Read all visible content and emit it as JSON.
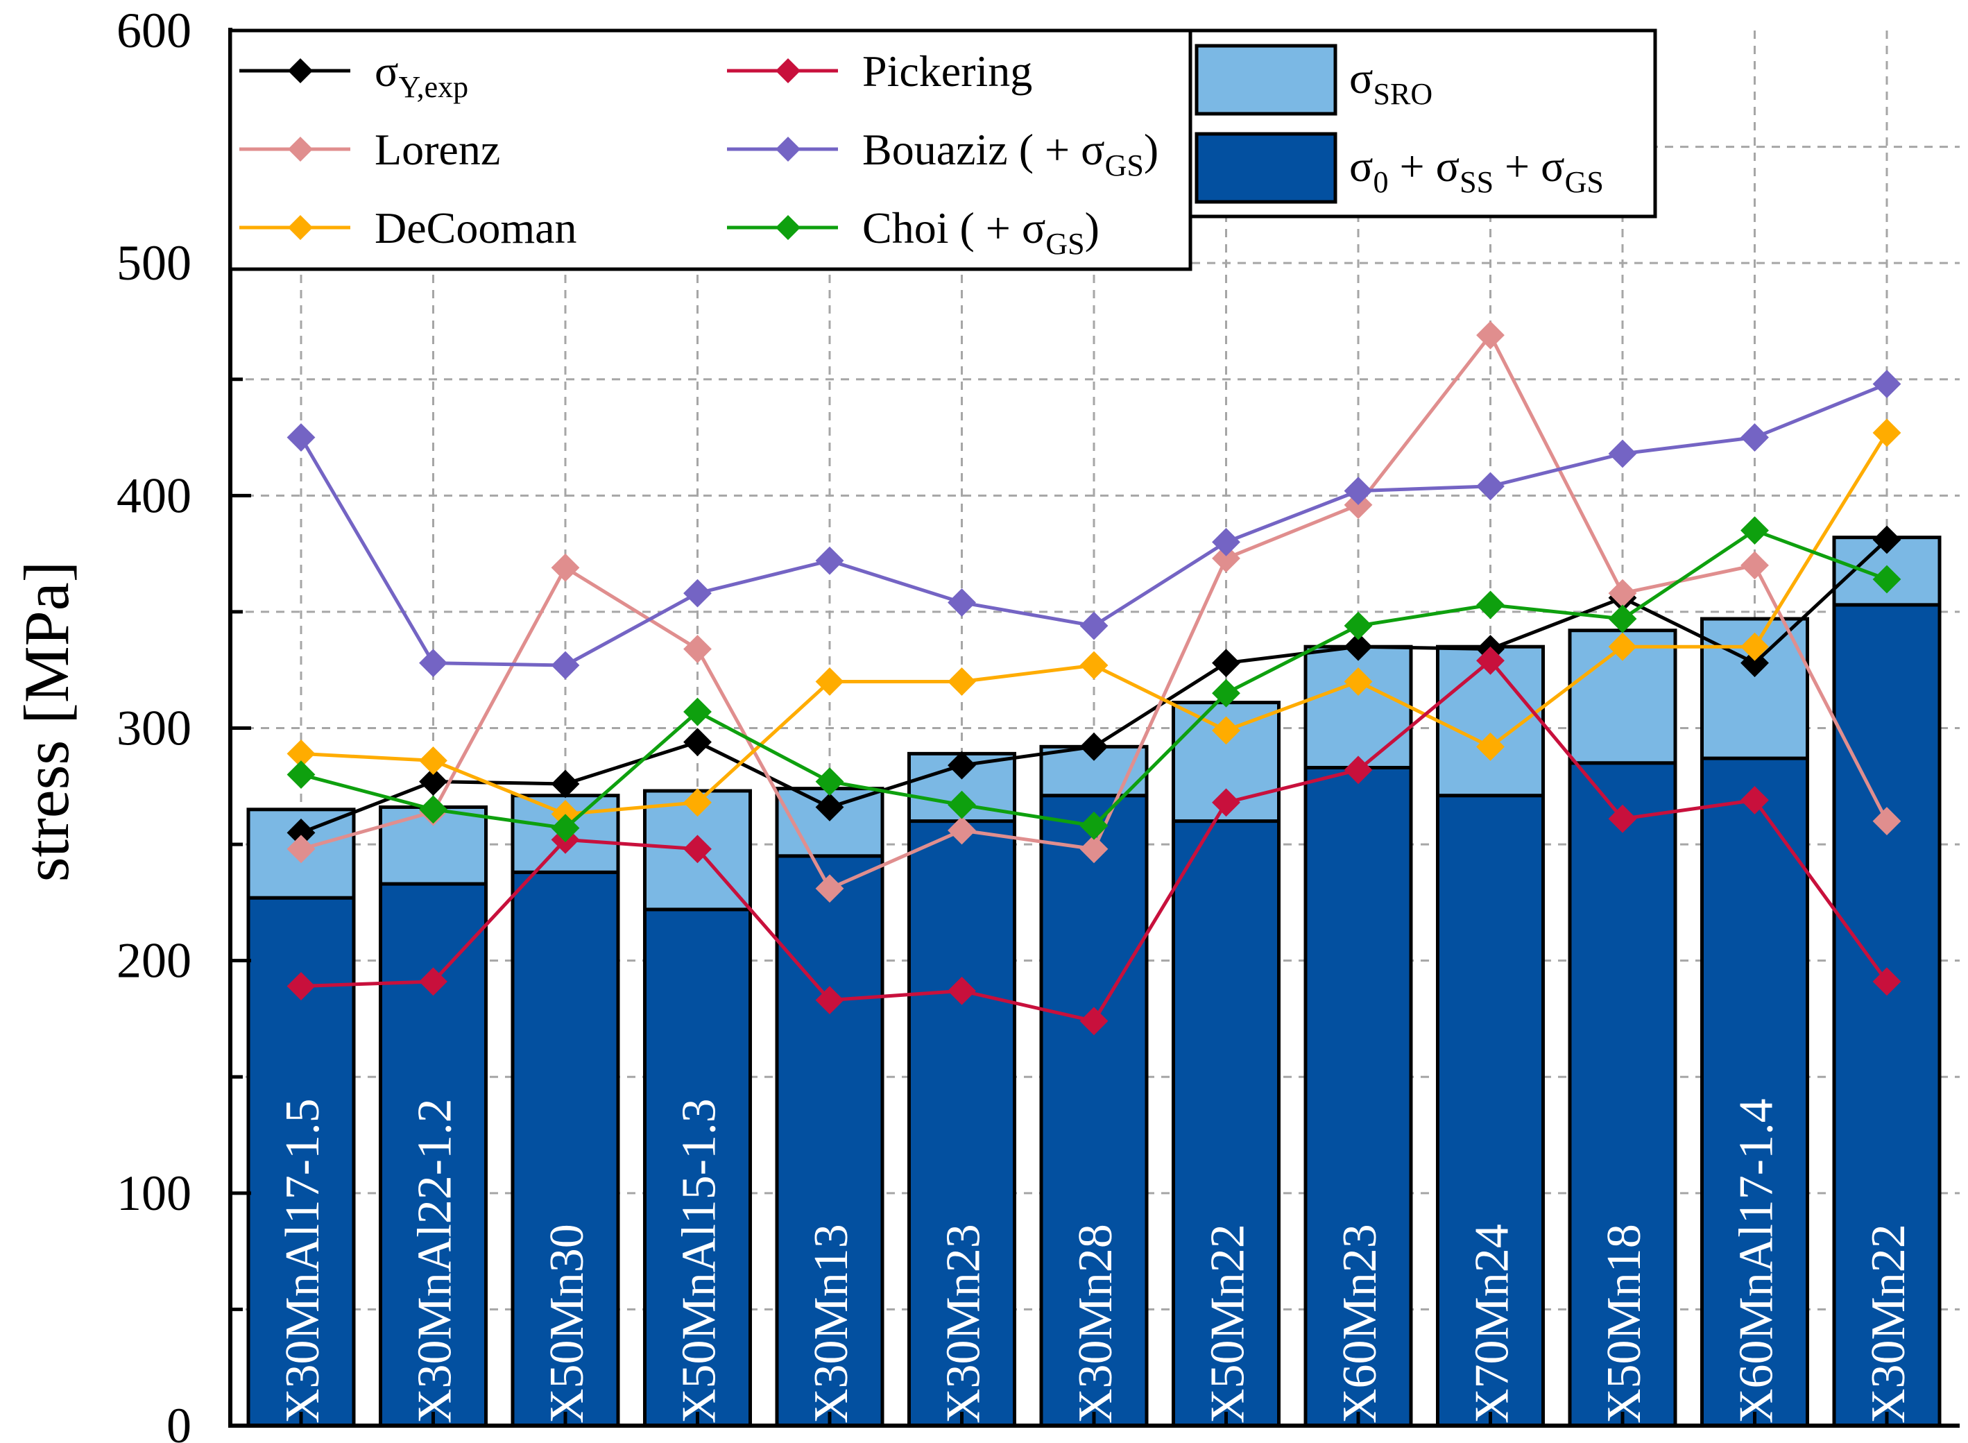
{
  "chart_data": {
    "type": "bar",
    "ylabel": "stress [MPa]",
    "xlabel": "",
    "ylim": [
      0,
      600
    ],
    "yticks": [
      "0",
      "100",
      "200",
      "300",
      "400",
      "500",
      "600"
    ],
    "grid": true,
    "stacked": true,
    "categories": [
      "X30MnAl17-1.5",
      "X30MnAl22-1.2",
      "X50Mn30",
      "X50MnAl15-1.3",
      "X30Mn13",
      "X30Mn23",
      "X30Mn28",
      "X50Mn22",
      "X60Mn23",
      "X70Mn24",
      "X50Mn18",
      "X60MnAl17-1.4",
      "X30Mn22"
    ],
    "bar_series": [
      {
        "key": "base",
        "name": "σ0 + σSS + σGS",
        "color": "#0350a0",
        "values": [
          227,
          233,
          238,
          222,
          245,
          260,
          271,
          260,
          283,
          271,
          285,
          287,
          353
        ]
      },
      {
        "key": "sro",
        "name": "σSRO",
        "color": "#7bb8e4",
        "values": [
          38,
          33,
          33,
          51,
          29,
          29,
          21,
          51,
          52,
          64,
          57,
          60,
          29
        ]
      }
    ],
    "line_series": [
      {
        "key": "exp",
        "name": "σY,exp",
        "color": "#000000",
        "values": [
          255,
          277,
          276,
          294,
          266,
          284,
          292,
          328,
          335,
          334,
          356,
          328,
          381
        ]
      },
      {
        "key": "lorenz",
        "name": "Lorenz",
        "color": "#e08e8e",
        "values": [
          248,
          264,
          369,
          334,
          231,
          256,
          248,
          373,
          396,
          469,
          358,
          370,
          260
        ]
      },
      {
        "key": "decooman",
        "name": "DeCooman",
        "color": "#ffac00",
        "values": [
          289,
          286,
          263,
          268,
          320,
          320,
          327,
          299,
          320,
          292,
          335,
          335,
          427
        ]
      },
      {
        "key": "pickering",
        "name": "Pickering",
        "color": "#c8103c",
        "values": [
          189,
          191,
          252,
          248,
          183,
          187,
          174,
          268,
          282,
          329,
          261,
          269,
          191
        ]
      },
      {
        "key": "bouaziz",
        "name": "Bouaziz ( + σGS)",
        "color": "#7464c4",
        "values": [
          425,
          328,
          327,
          358,
          372,
          354,
          344,
          380,
          402,
          404,
          418,
          425,
          448
        ]
      },
      {
        "key": "choi",
        "name": "Choi ( + σGS)",
        "color": "#0ea00e",
        "values": [
          280,
          265,
          257,
          307,
          277,
          267,
          258,
          315,
          344,
          353,
          347,
          385,
          364
        ]
      }
    ]
  },
  "legend": {
    "lines": [
      {
        "key": "exp",
        "base": "σ",
        "sub": "Y,exp",
        "tail": ""
      },
      {
        "key": "pickering",
        "base": "Pickering",
        "sub": "",
        "tail": ""
      },
      {
        "key": "lorenz",
        "base": "Lorenz",
        "sub": "",
        "tail": ""
      },
      {
        "key": "bouaziz",
        "base": "Bouaziz ( + σ",
        "sub": "GS",
        "tail": ")"
      },
      {
        "key": "decooman",
        "base": "DeCooman",
        "sub": "",
        "tail": ""
      },
      {
        "key": "choi",
        "base": "Choi ( + σ",
        "sub": "GS",
        "tail": ")"
      }
    ],
    "bars": [
      {
        "key": "sro",
        "parts": [
          {
            "t": "σ",
            "sub": "SRO"
          }
        ]
      },
      {
        "key": "base",
        "parts": [
          {
            "t": "σ",
            "sub": "0"
          },
          {
            "t": " + σ",
            "sub": "SS"
          },
          {
            "t": " + σ",
            "sub": "GS"
          }
        ]
      }
    ]
  }
}
